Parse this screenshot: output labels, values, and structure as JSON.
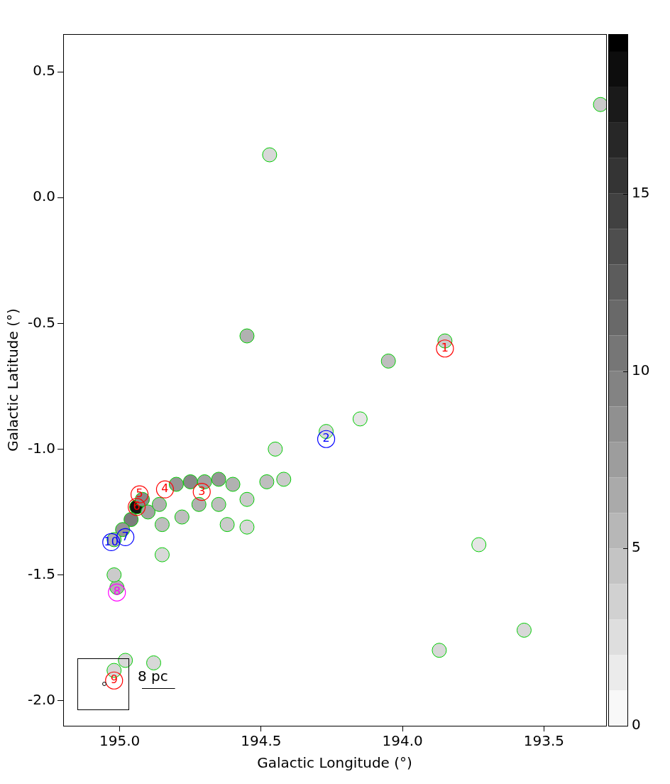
{
  "chart_data": {
    "type": "scatter",
    "x_label": "Galactic Longitude (°)",
    "y_label": "Galactic Latitude (°)",
    "xlim": [
      195.2,
      193.28
    ],
    "ylim": [
      -2.1,
      0.65
    ],
    "xticks": [
      {
        "value": 195,
        "label": "195.0"
      },
      194.5,
      {
        "value": 194,
        "label": "194.0"
      },
      193.5
    ],
    "yticks": [
      {
        "value": -2,
        "label": "-2.0"
      },
      -1.5,
      {
        "value": -1,
        "label": "-1.0"
      },
      -0.5,
      {
        "value": 0,
        "label": "0.0"
      },
      0.5
    ],
    "grid": false,
    "tick_labels": true,
    "labels": [
      "1",
      "2",
      "3",
      "4",
      "5",
      "6",
      "7",
      "8",
      "9",
      "10"
    ],
    "x": [
      193.85,
      194.27,
      194.71,
      194.84,
      194.93,
      194.94,
      194.98,
      195.01,
      195.02,
      195.03
    ],
    "y": [
      -0.6,
      -0.96,
      -1.17,
      -1.16,
      -1.18,
      -1.23,
      -1.35,
      -1.57,
      -1.92,
      -1.37
    ],
    "colors": [
      "#ff0000",
      "#0000ff",
      "#ff0000",
      "#ff0000",
      "#ff0000",
      "#ff0000",
      "#0000ff",
      "#ff00ff",
      "#ff0000",
      "#0000ff"
    ],
    "marker": "circle",
    "emission": {
      "x": [
        194.94,
        194.96,
        194.99,
        195.02,
        194.92,
        194.9,
        194.86,
        194.8,
        194.75,
        194.7,
        194.65,
        194.6,
        194.85,
        194.78,
        194.72,
        194.65,
        194.55,
        194.48,
        194.42,
        194.62,
        194.55,
        194.85,
        194.45,
        194.27,
        194.15,
        194.55,
        194.05,
        193.85,
        194.47,
        193.3,
        195.01,
        195.02,
        194.88,
        194.98,
        195.02,
        193.87,
        193.57,
        193.73
      ],
      "y": [
        -1.23,
        -1.28,
        -1.32,
        -1.36,
        -1.2,
        -1.25,
        -1.22,
        -1.14,
        -1.13,
        -1.13,
        -1.12,
        -1.14,
        -1.3,
        -1.27,
        -1.22,
        -1.22,
        -1.2,
        -1.13,
        -1.12,
        -1.3,
        -1.31,
        -1.42,
        -1.0,
        -0.93,
        -0.88,
        -0.55,
        -0.65,
        -0.57,
        0.17,
        0.37,
        -1.55,
        -1.5,
        -1.85,
        -1.84,
        -1.88,
        -1.8,
        -1.72,
        -1.38
      ],
      "values": [
        18,
        10,
        8,
        6,
        9,
        7,
        6,
        8,
        9,
        7,
        8,
        6,
        5,
        5,
        6,
        5,
        4,
        5,
        4,
        4,
        3,
        3,
        3,
        3,
        2,
        6,
        5,
        4,
        3,
        4,
        6,
        4,
        3,
        3,
        3,
        3,
        3,
        2
      ]
    },
    "colorbar": {
      "range": [
        0,
        19.5
      ],
      "ticks": [
        0,
        5,
        10,
        15
      ]
    },
    "scale_bar": {
      "label": "8 pc",
      "length": 0.117
    }
  }
}
